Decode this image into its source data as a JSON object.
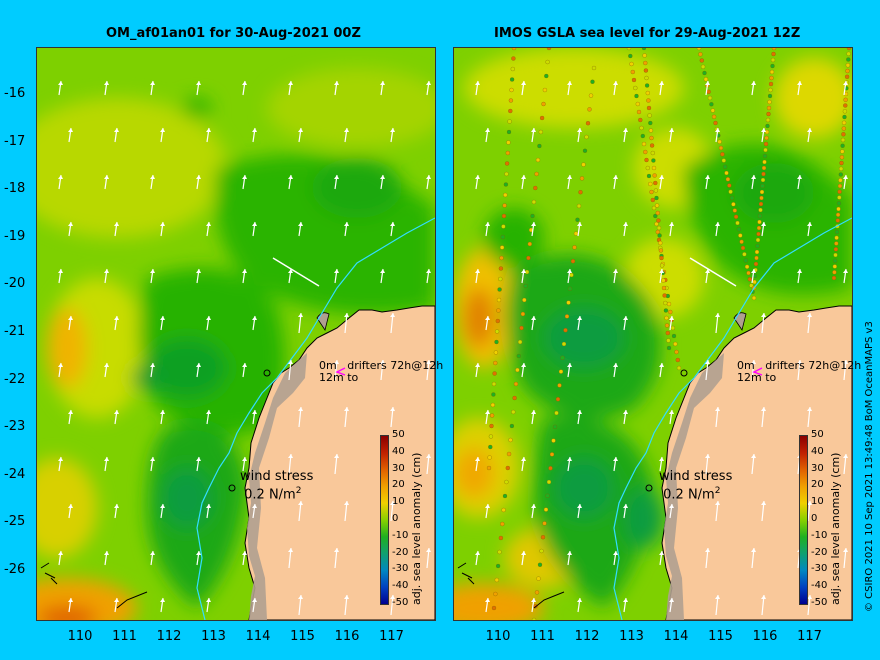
{
  "panels": [
    {
      "title": "OM_af01an01 for 30-Aug-2021 00Z"
    },
    {
      "title": "IMOS GSLA sea level  for 29-Aug-2021 12Z"
    }
  ],
  "lat_labels": [
    "-16",
    "-17",
    "-18",
    "-19",
    "-20",
    "-21",
    "-22",
    "-23",
    "-24",
    "-25",
    "-26"
  ],
  "lon_labels": [
    "110",
    "111",
    "112",
    "113",
    "114",
    "115",
    "116",
    "117"
  ],
  "drifters": {
    "line1": "0m",
    "line2": "drifters 72h@12h",
    "line3": "12m to"
  },
  "wind_stress": {
    "label": "wind stress",
    "value": "0.2 N/m",
    "sup": "2"
  },
  "colorbar": {
    "title": "adj. sea level anomaly (cm)",
    "ticks": [
      "50",
      "40",
      "30",
      "20",
      "10",
      "0",
      "-10",
      "-20",
      "-30",
      "-40",
      "-50"
    ]
  },
  "credit": "© CSIRO 2021  10 Sep 2021 13:49:48 BoM OceanMAPS v3",
  "colors": {
    "background": "#00ccff",
    "land": "#f9c89a",
    "ocean_green": "#22b000",
    "ocean_light": "#7ed000",
    "ocean_yellow": "#ccdd00",
    "ocean_orange": "#f0a000",
    "coastline_river": "#33ddff"
  }
}
